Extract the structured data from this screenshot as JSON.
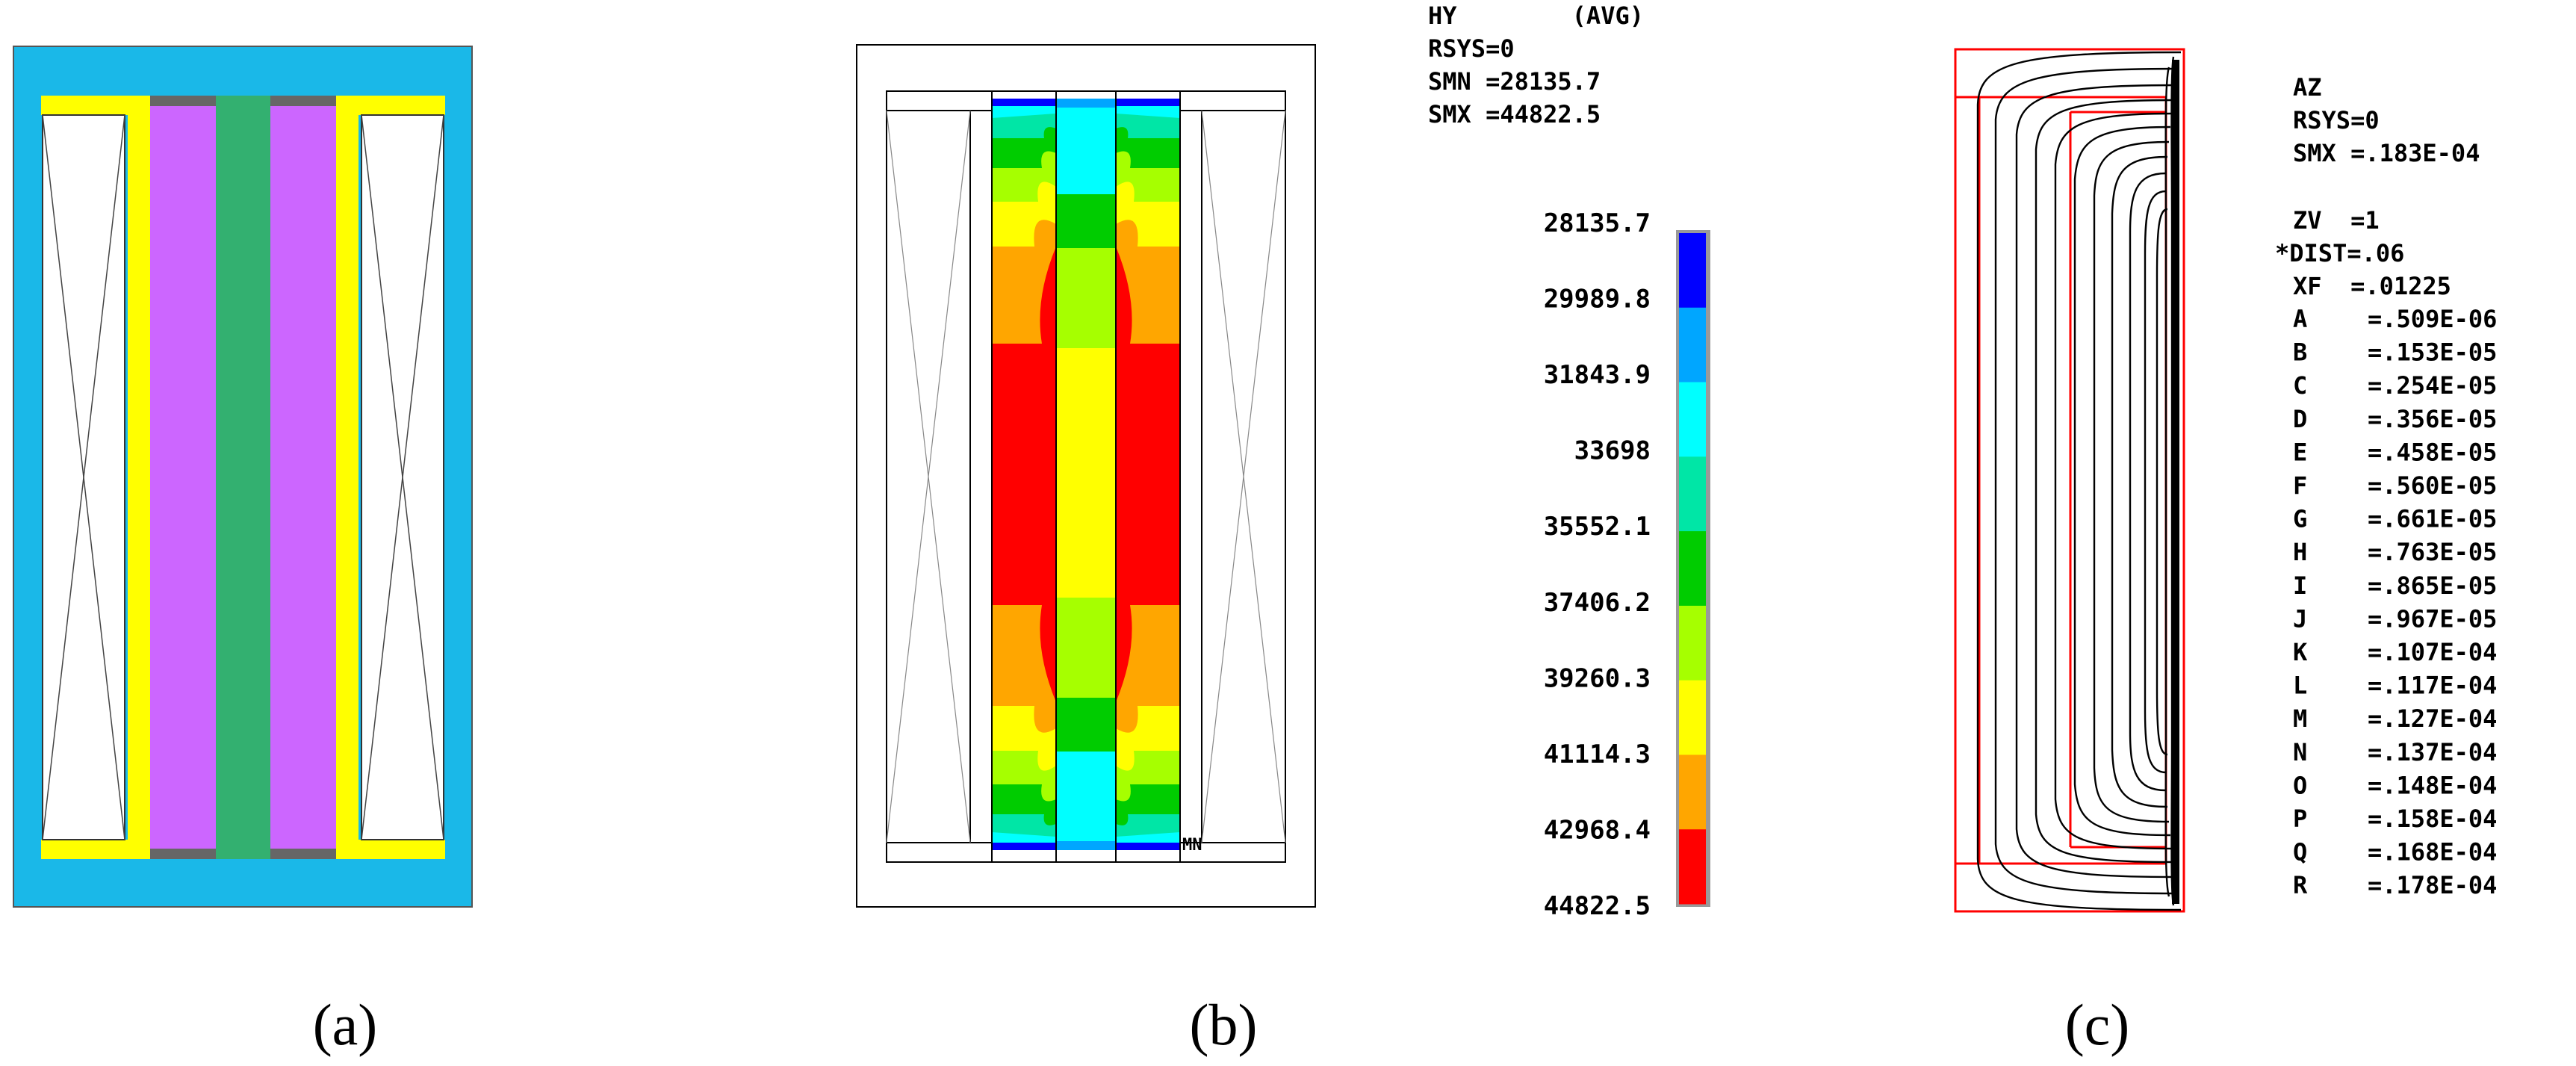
{
  "captions": {
    "a": "(a)",
    "b": "(b)",
    "c": "(c)"
  },
  "colors": {
    "air": "#1ab8e8",
    "yoke": "#ffff00",
    "magnet": "#cc66ff",
    "core": "#33b070",
    "gap": "#666666",
    "contour_line": "#ff0000"
  },
  "panel_b": {
    "header": [
      "HY        (AVG)",
      "RSYS=0",
      "SMN =28135.7",
      "SMX =44822.5"
    ],
    "node_marker": "MN",
    "legend": {
      "labels": [
        "28135.7",
        "29989.8",
        "31843.9",
        "33698",
        "35552.1",
        "37406.2",
        "39260.3",
        "41114.3",
        "42968.4",
        "44822.5"
      ],
      "colors": [
        "#0000ff",
        "#00a6ff",
        "#00ffff",
        "#00e6a6",
        "#00cc00",
        "#a6ff00",
        "#ffff00",
        "#ffa600",
        "#ff0000"
      ]
    }
  },
  "panel_c": {
    "header": [
      "AZ",
      "RSYS=0",
      "SMX =.183E-04"
    ],
    "params": [
      "ZV  =1",
      "*DIST=.06",
      "XF  =.01225"
    ],
    "contours": [
      {
        "key": "A",
        "value": "=.509E-06"
      },
      {
        "key": "B",
        "value": "=.153E-05"
      },
      {
        "key": "C",
        "value": "=.254E-05"
      },
      {
        "key": "D",
        "value": "=.356E-05"
      },
      {
        "key": "E",
        "value": "=.458E-05"
      },
      {
        "key": "F",
        "value": "=.560E-05"
      },
      {
        "key": "G",
        "value": "=.661E-05"
      },
      {
        "key": "H",
        "value": "=.763E-05"
      },
      {
        "key": "I",
        "value": "=.865E-05"
      },
      {
        "key": "J",
        "value": "=.967E-05"
      },
      {
        "key": "K",
        "value": "=.107E-04"
      },
      {
        "key": "L",
        "value": "=.117E-04"
      },
      {
        "key": "M",
        "value": "=.127E-04"
      },
      {
        "key": "N",
        "value": "=.137E-04"
      },
      {
        "key": "O",
        "value": "=.148E-04"
      },
      {
        "key": "P",
        "value": "=.158E-04"
      },
      {
        "key": "Q",
        "value": "=.168E-04"
      },
      {
        "key": "R",
        "value": "=.178E-04"
      }
    ]
  }
}
